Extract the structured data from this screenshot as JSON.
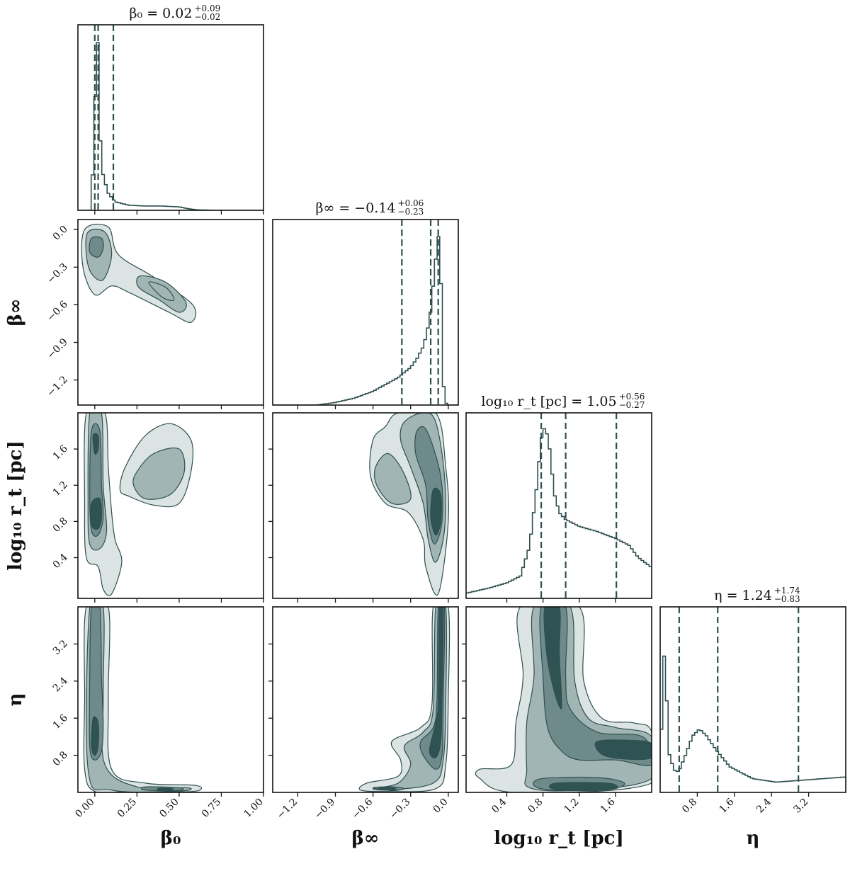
{
  "chart_data": {
    "type": "corner",
    "parameters": [
      {
        "key": "b0",
        "label": "β₀",
        "range": [
          -0.1,
          1.0
        ],
        "ticks": [
          0.0,
          0.25,
          0.5,
          0.75,
          1.0
        ],
        "tick_labels": [
          "0.00",
          "0.25",
          "0.50",
          "0.75",
          "1.00"
        ]
      },
      {
        "key": "binf",
        "label": "β∞",
        "range": [
          -1.4,
          0.08
        ],
        "ticks": [
          -1.2,
          -0.9,
          -0.6,
          -0.3,
          0.0
        ],
        "tick_labels": [
          "−1.2",
          "−0.9",
          "−0.6",
          "−0.3",
          "0.0"
        ]
      },
      {
        "key": "logrt",
        "label": "log₁₀ r_t [pc]",
        "range": [
          -0.05,
          2.0
        ],
        "ticks": [
          0.4,
          0.8,
          1.2,
          1.6
        ],
        "tick_labels": [
          "0.4",
          "0.8",
          "1.2",
          "1.6"
        ]
      },
      {
        "key": "eta",
        "label": "η",
        "range": [
          0.0,
          4.0
        ],
        "ticks": [
          0.8,
          1.6,
          2.4,
          3.2
        ],
        "tick_labels": [
          "0.8",
          "1.6",
          "2.4",
          "3.2"
        ]
      }
    ],
    "titles": [
      {
        "param": "β₀",
        "median": "0.02",
        "plus": "+0.09",
        "minus": "−0.02"
      },
      {
        "param": "β∞",
        "median": "−0.14",
        "plus": "+0.06",
        "minus": "−0.23"
      },
      {
        "param": "log₁₀ r_t [pc]",
        "median": "1.05",
        "plus": "+0.56",
        "minus": "−0.27"
      },
      {
        "param": "η",
        "median": "1.24",
        "plus": "+1.74",
        "minus": "−0.83"
      }
    ],
    "quantile_lines": [
      [
        0.0,
        0.02,
        0.11
      ],
      [
        -0.37,
        -0.14,
        -0.08
      ],
      [
        0.78,
        1.05,
        1.61
      ],
      [
        0.41,
        1.24,
        2.98
      ]
    ],
    "histograms": [
      {
        "param": "b0",
        "x": [
          -0.02,
          0.0,
          0.01,
          0.02,
          0.03,
          0.05,
          0.08,
          0.12,
          0.2,
          0.3,
          0.4,
          0.5,
          0.55,
          0.6,
          0.7,
          1.0
        ],
        "y": [
          0.02,
          0.6,
          0.9,
          1.0,
          0.45,
          0.2,
          0.1,
          0.05,
          0.03,
          0.025,
          0.025,
          0.02,
          0.01,
          0.003,
          0.0,
          0.0
        ]
      },
      {
        "param": "binf",
        "x": [
          -1.4,
          -1.05,
          -0.9,
          -0.75,
          -0.6,
          -0.5,
          -0.4,
          -0.3,
          -0.25,
          -0.2,
          -0.17,
          -0.14,
          -0.12,
          -0.1,
          -0.08,
          -0.07,
          -0.06,
          -0.05,
          -0.03,
          0.0
        ],
        "y": [
          0.0,
          0.0,
          0.015,
          0.04,
          0.08,
          0.12,
          0.16,
          0.22,
          0.27,
          0.34,
          0.42,
          0.55,
          0.7,
          0.85,
          0.98,
          1.0,
          0.85,
          0.3,
          0.02,
          0.0
        ]
      },
      {
        "param": "logrt",
        "x": [
          -0.05,
          0.2,
          0.4,
          0.55,
          0.65,
          0.72,
          0.77,
          0.8,
          0.84,
          0.88,
          0.92,
          0.98,
          1.05,
          1.2,
          1.4,
          1.6,
          1.75,
          1.85,
          2.0
        ],
        "y": [
          0.03,
          0.06,
          0.09,
          0.13,
          0.3,
          0.6,
          0.88,
          1.0,
          0.97,
          0.85,
          0.62,
          0.5,
          0.46,
          0.42,
          0.39,
          0.35,
          0.31,
          0.24,
          0.18
        ]
      },
      {
        "param": "eta",
        "x": [
          0.0,
          0.06,
          0.1,
          0.14,
          0.2,
          0.3,
          0.4,
          0.55,
          0.7,
          0.85,
          1.0,
          1.2,
          1.5,
          2.0,
          2.5,
          3.0,
          3.5,
          4.0
        ],
        "y": [
          0.02,
          0.75,
          0.82,
          0.55,
          0.22,
          0.13,
          0.12,
          0.22,
          0.33,
          0.37,
          0.33,
          0.25,
          0.15,
          0.08,
          0.06,
          0.07,
          0.08,
          0.09
        ]
      }
    ],
    "contour_levels": 4,
    "style": {
      "fill_levels": [
        "#dbe3e3",
        "#a2b5b5",
        "#6f8a8a",
        "#2f5252"
      ],
      "line_color": "#2f4f4f"
    }
  }
}
